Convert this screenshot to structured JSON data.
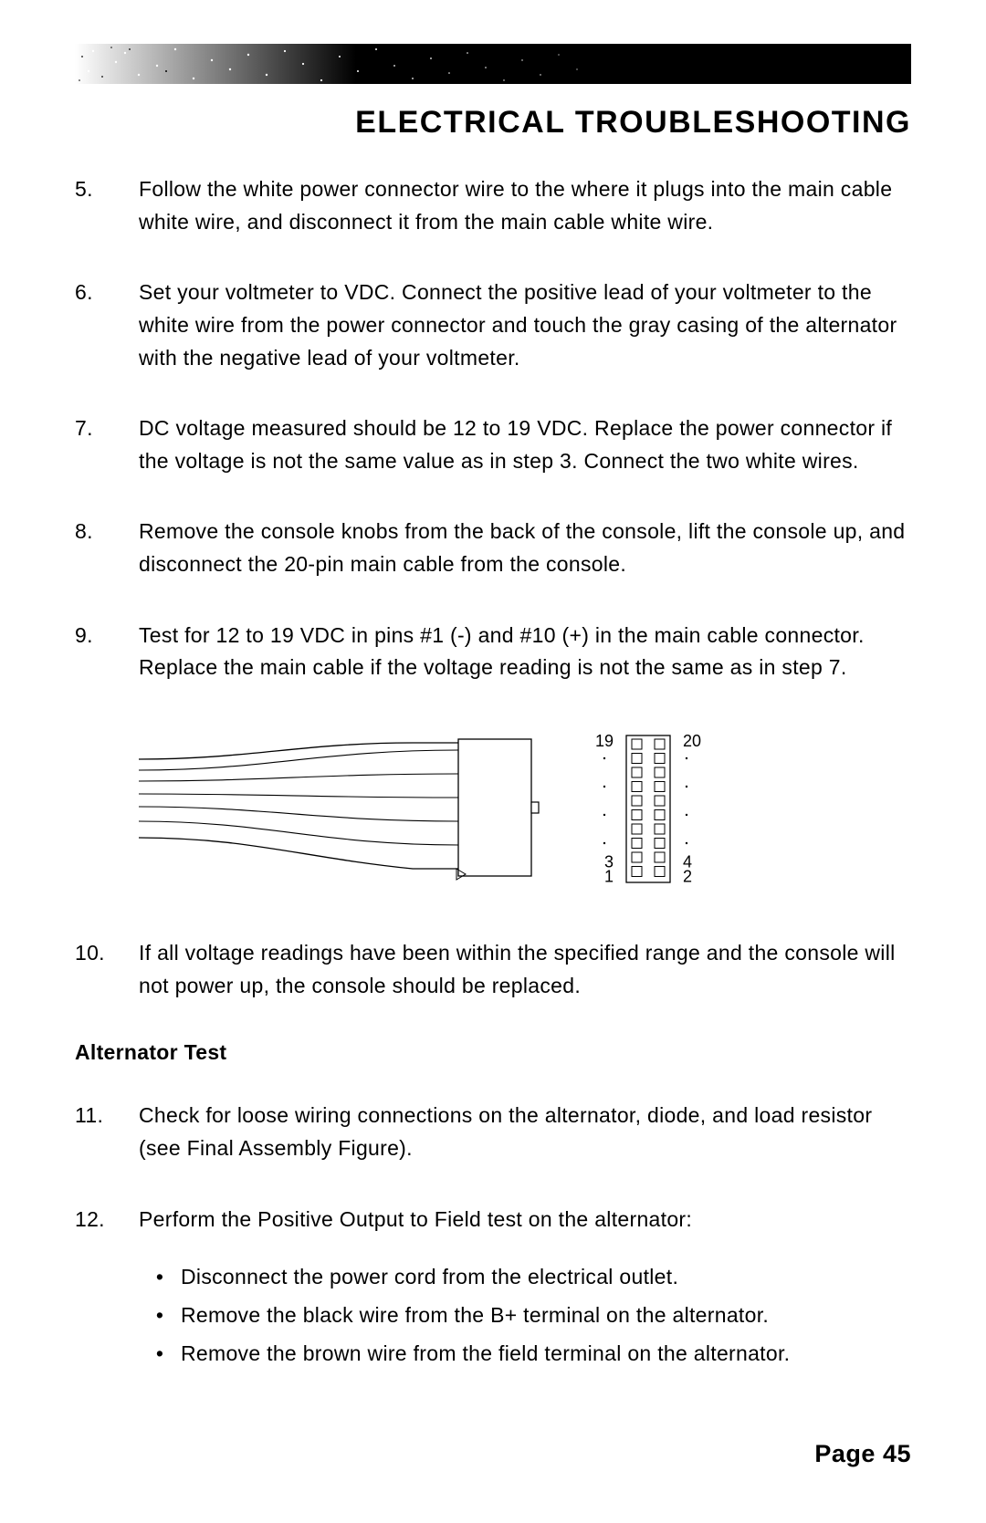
{
  "header": {
    "title": "ELECTRICAL TROUBLESHOOTING",
    "band_colors": {
      "left": "#ffffff",
      "right": "#000000"
    }
  },
  "steps_a": [
    {
      "num": "5.",
      "text": "Follow the white power connector wire to the where it plugs into the main cable white wire, and disconnect it from the main cable white wire."
    },
    {
      "num": "6.",
      "text": "Set your voltmeter to VDC. Connect the positive lead of your voltmeter to the white wire from the power connector and touch the gray casing of the alternator with the negative lead of your voltmeter."
    },
    {
      "num": "7.",
      "text": "DC voltage measured should be 12 to 19 VDC. Replace the power connector if the voltage is not the same value as in step 3. Connect the two white wires."
    },
    {
      "num": "8.",
      "text": "Remove the console knobs from the back of the console, lift the console up, and disconnect the 20-pin main cable from the console."
    },
    {
      "num": "9.",
      "text": "Test for 12 to 19 VDC in pins #1 (-) and #10 (+) in the main cable connector. Replace the main cable if the voltage reading is not the same as in step 7."
    }
  ],
  "diagram": {
    "labels": {
      "top_left": "19",
      "top_right": "20",
      "bottom_left_upper": "3",
      "bottom_left_lower": "1",
      "bottom_right_upper": "4",
      "bottom_right_lower": "2"
    },
    "pin_rows": 10,
    "pin_cols": 2,
    "colors": {
      "stroke": "#000000",
      "fill": "#ffffff",
      "label": "#000000"
    },
    "label_fontsize": 18
  },
  "steps_b": [
    {
      "num": "10.",
      "text": "If all voltage readings have been within the specified range and the console will not power up, the console should be replaced."
    }
  ],
  "subheading": "Alternator Test",
  "steps_c": [
    {
      "num": "11.",
      "text": "Check for loose wiring connections on the alternator, diode, and load resistor (see Final Assembly Figure)."
    },
    {
      "num": "12.",
      "text": "Perform the Positive Output to Field test on the alternator:",
      "bullets": [
        "Disconnect the power cord from the electrical outlet.",
        "Remove the black wire from the B+ terminal on the alternator.",
        "Remove the brown wire from the field terminal on the alternator."
      ]
    }
  ],
  "footer": {
    "label": "Page",
    "number": "45"
  }
}
